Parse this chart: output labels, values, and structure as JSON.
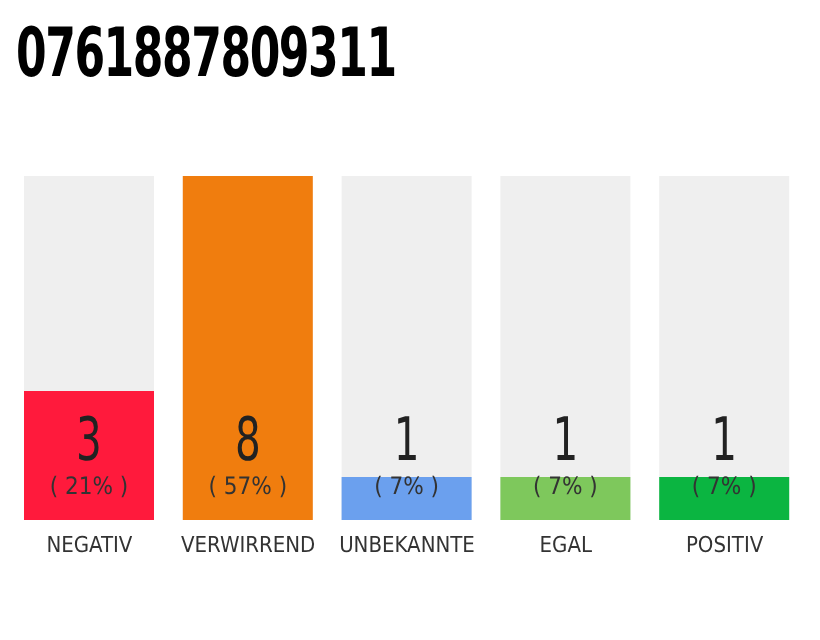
{
  "chart_data": {
    "type": "bar",
    "title": "0761887809311",
    "categories": [
      "NEGATIV",
      "VERWIRREND",
      "UNBEKANNTE",
      "EGAL",
      "POSITIV"
    ],
    "values": [
      3,
      8,
      1,
      1,
      1
    ],
    "colors": [
      "#ff1a3c",
      "#f07d0e",
      "#6ba0ee",
      "#7ec85c",
      "#0bb541"
    ],
    "ylim": [
      0,
      8
    ],
    "tick_labels": "x",
    "data_labels": true,
    "grid": false,
    "legend": false,
    "annotations": [
      "( 21% )",
      "( 57% )",
      "( 7% )",
      "( 7% )",
      "( 7% )"
    ]
  }
}
